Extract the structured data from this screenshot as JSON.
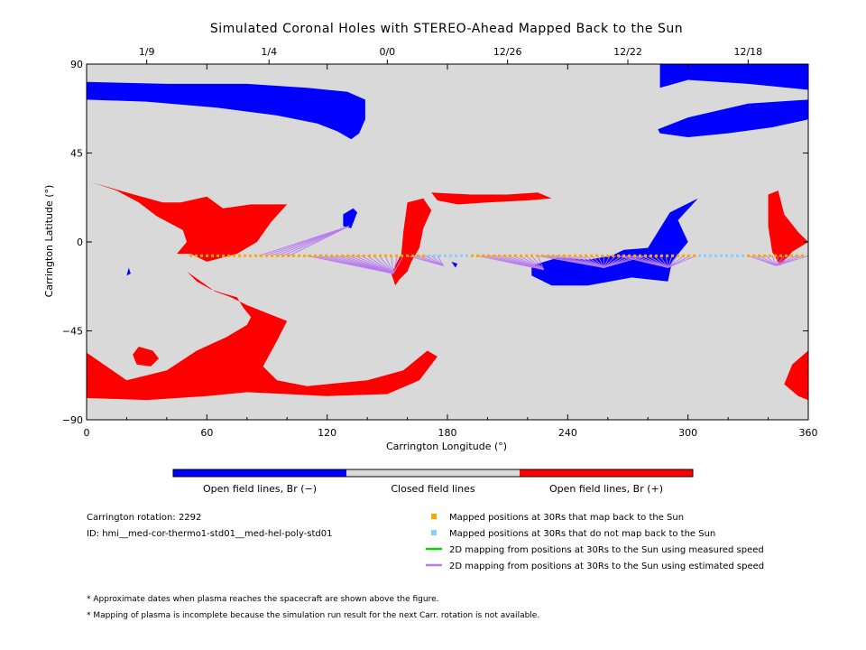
{
  "colors": {
    "closed": "#d9d9d9",
    "open_negative": "#0000ff",
    "open_positive": "#ff0000",
    "maps_back": "#ffa500",
    "no_map_back": "#87cefa",
    "measured_speed": "#00dd00",
    "estimated_speed": "#b77bf0"
  },
  "chart_data": {
    "type": "heatmap",
    "title": "Simulated Coronal Holes with STEREO-Ahead Mapped Back to the Sun",
    "xlabel": "Carrington Longitude (°)",
    "ylabel": "Carrington Latitude (°)",
    "xlim": [
      0,
      360
    ],
    "ylim": [
      -90,
      90
    ],
    "x_ticks": [
      0,
      60,
      120,
      180,
      240,
      300,
      360
    ],
    "y_ticks": [
      -90,
      -45,
      0,
      45,
      90
    ],
    "top_axis_dates": [
      {
        "lon": 30,
        "label": "1/9"
      },
      {
        "lon": 91,
        "label": "1/4"
      },
      {
        "lon": 150,
        "label": "0/0"
      },
      {
        "lon": 210,
        "label": "12/26"
      },
      {
        "lon": 270,
        "label": "12/22"
      },
      {
        "lon": 330,
        "label": "12/18"
      }
    ],
    "open_negative_regions": [
      [
        [
          0,
          90
        ],
        [
          0,
          72
        ],
        [
          30,
          71
        ],
        [
          65,
          68
        ],
        [
          95,
          64
        ],
        [
          115,
          60
        ],
        [
          125,
          56
        ],
        [
          132,
          52
        ],
        [
          136,
          55
        ],
        [
          139,
          62
        ],
        [
          139,
          72
        ],
        [
          130,
          76
        ],
        [
          110,
          78
        ],
        [
          80,
          80
        ],
        [
          40,
          80
        ],
        [
          0,
          81
        ]
      ],
      [
        [
          286,
          90
        ],
        [
          286,
          78
        ],
        [
          300,
          82
        ],
        [
          330,
          80
        ],
        [
          360,
          77
        ],
        [
          360,
          90
        ]
      ],
      [
        [
          360,
          72
        ],
        [
          330,
          70
        ],
        [
          300,
          63
        ],
        [
          285,
          57
        ],
        [
          286,
          55
        ],
        [
          300,
          53
        ],
        [
          320,
          55
        ],
        [
          342,
          58
        ],
        [
          360,
          62
        ]
      ],
      [
        [
          128,
          14
        ],
        [
          133,
          17
        ],
        [
          135,
          15
        ],
        [
          132,
          7
        ],
        [
          128,
          8
        ]
      ],
      [
        [
          182,
          -10
        ],
        [
          185,
          -11
        ],
        [
          184,
          -13
        ]
      ],
      [
        [
          21,
          -13
        ],
        [
          22,
          -16
        ],
        [
          20,
          -17
        ]
      ],
      [
        [
          222,
          -12
        ],
        [
          235,
          -8
        ],
        [
          250,
          -9
        ],
        [
          262,
          -7
        ],
        [
          268,
          -4
        ],
        [
          280,
          -3
        ],
        [
          291,
          15
        ],
        [
          305,
          22
        ],
        [
          295,
          11
        ],
        [
          300,
          0
        ],
        [
          292,
          -10
        ],
        [
          290,
          -20
        ],
        [
          272,
          -18
        ],
        [
          250,
          -22
        ],
        [
          232,
          -22
        ],
        [
          222,
          -17
        ]
      ]
    ],
    "open_positive_regions": [
      [
        [
          3,
          30
        ],
        [
          20,
          25
        ],
        [
          38,
          20
        ],
        [
          47,
          20
        ],
        [
          60,
          23
        ],
        [
          68,
          17
        ],
        [
          82,
          19
        ],
        [
          100,
          19
        ],
        [
          92,
          10
        ],
        [
          85,
          0
        ],
        [
          75,
          -6
        ],
        [
          60,
          -10
        ],
        [
          52,
          -6
        ],
        [
          45,
          -6
        ],
        [
          50,
          0
        ],
        [
          48,
          6
        ],
        [
          35,
          13
        ],
        [
          26,
          20
        ],
        [
          15,
          26
        ]
      ],
      [
        [
          50,
          -15
        ],
        [
          55,
          -20
        ],
        [
          62,
          -24
        ],
        [
          68,
          -26
        ],
        [
          75,
          -28
        ],
        [
          78,
          -33
        ],
        [
          82,
          -38
        ],
        [
          80,
          -42
        ],
        [
          70,
          -48
        ],
        [
          55,
          -55
        ],
        [
          40,
          -65
        ],
        [
          20,
          -70
        ],
        [
          0,
          -56
        ],
        [
          0,
          -79
        ],
        [
          30,
          -80
        ],
        [
          60,
          -78
        ],
        [
          80,
          -76
        ],
        [
          100,
          -77
        ],
        [
          120,
          -78
        ],
        [
          150,
          -77
        ],
        [
          166,
          -70
        ],
        [
          175,
          -58
        ],
        [
          170,
          -55
        ],
        [
          158,
          -65
        ],
        [
          140,
          -70
        ],
        [
          110,
          -73
        ],
        [
          95,
          -70
        ],
        [
          88,
          -63
        ],
        [
          95,
          -50
        ],
        [
          100,
          -40
        ],
        [
          80,
          -32
        ],
        [
          72,
          -28
        ],
        [
          64,
          -25
        ],
        [
          57,
          -20
        ]
      ],
      [
        [
          172,
          25
        ],
        [
          192,
          24
        ],
        [
          210,
          24
        ],
        [
          225,
          25
        ],
        [
          232,
          22
        ],
        [
          220,
          21
        ],
        [
          200,
          20
        ],
        [
          185,
          19
        ],
        [
          175,
          21
        ]
      ],
      [
        [
          160,
          20
        ],
        [
          168,
          22
        ],
        [
          172,
          16
        ],
        [
          168,
          7
        ],
        [
          166,
          -3
        ],
        [
          162,
          -10
        ],
        [
          160,
          -15
        ],
        [
          156,
          -19
        ],
        [
          154,
          -22
        ],
        [
          152,
          -16
        ],
        [
          157,
          -6
        ],
        [
          158,
          5
        ]
      ],
      [
        [
          340,
          24
        ],
        [
          345,
          26
        ],
        [
          348,
          14
        ],
        [
          355,
          5
        ],
        [
          360,
          0
        ],
        [
          352,
          -5
        ],
        [
          346,
          -12
        ],
        [
          342,
          -5
        ],
        [
          340,
          8
        ]
      ],
      [
        [
          360,
          -55
        ],
        [
          352,
          -62
        ],
        [
          348,
          -72
        ],
        [
          355,
          -78
        ],
        [
          360,
          -80
        ]
      ],
      [
        [
          26,
          -53
        ],
        [
          33,
          -55
        ],
        [
          36,
          -59
        ],
        [
          32,
          -63
        ],
        [
          25,
          -62
        ],
        [
          23,
          -57
        ]
      ]
    ],
    "mapped_track_lat": -7,
    "mapped_track_lon_range": [
      52,
      360
    ],
    "no_map_back_ranges": [
      [
        170,
        192
      ],
      [
        305,
        330
      ]
    ],
    "estimated_speed_fans": [
      {
        "from": [
          86,
          103
        ],
        "to": [
          131,
          8
        ]
      },
      {
        "from": [
          110,
          160
        ],
        "to": [
          153,
          -16
        ]
      },
      {
        "from": [
          160,
          176
        ],
        "to": [
          178,
          -12
        ]
      },
      {
        "from": [
          195,
          225
        ],
        "to": [
          228,
          -14
        ]
      },
      {
        "from": [
          225,
          280
        ],
        "to": [
          258,
          -13
        ]
      },
      {
        "from": [
          265,
          305
        ],
        "to": [
          290,
          -13
        ]
      },
      {
        "from": [
          330,
          360
        ],
        "to": [
          344,
          -12
        ]
      }
    ],
    "colorbar_labels": [
      "Open field lines, Br (−)",
      "Closed field lines",
      "Open field lines, Br (+)"
    ]
  },
  "info": {
    "rotation": "Carrington rotation: 2292",
    "id": "ID: hmi__med-cor-thermo1-std01__med-hel-poly-std01"
  },
  "legend": [
    "Mapped positions at 30Rs that map back to the Sun",
    "Mapped positions at 30Rs that do not map back to the Sun",
    "2D mapping from positions at 30Rs to the Sun using measured speed",
    "2D mapping from positions at 30Rs to the Sun using estimated speed"
  ],
  "notes": [
    "* Approximate dates when plasma reaches the spacecraft are shown above the figure.",
    "* Mapping of plasma is incomplete because the simulation run result for the next Carr. rotation is not available."
  ]
}
